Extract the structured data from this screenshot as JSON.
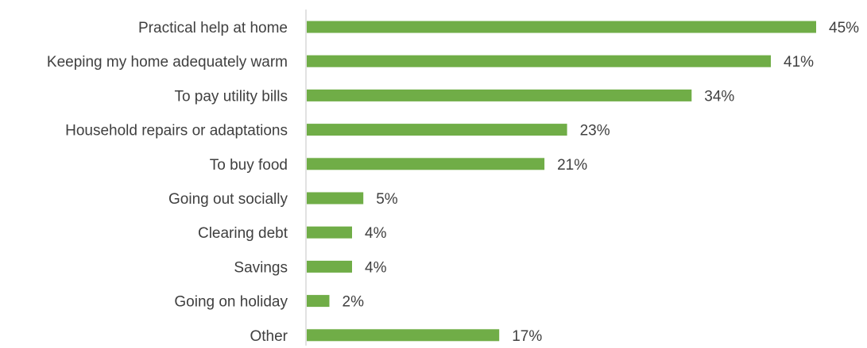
{
  "chart_data": {
    "type": "bar",
    "orientation": "horizontal",
    "title": "",
    "xlabel": "",
    "ylabel": "",
    "categories": [
      "Practical help at home",
      "Keeping my home adequately warm",
      "To pay utility bills",
      "Household repairs or adaptations",
      "To buy food",
      "Going out socially",
      "Clearing debt",
      "Savings",
      "Going on holiday",
      "Other"
    ],
    "values": [
      45,
      41,
      34,
      23,
      21,
      5,
      4,
      4,
      2,
      17
    ],
    "value_labels": [
      "45%",
      "41%",
      "34%",
      "23%",
      "21%",
      "5%",
      "4%",
      "4%",
      "2%",
      "17%"
    ],
    "unit": "%",
    "xlim": [
      0,
      45
    ],
    "grid": false,
    "legend": "none",
    "colors": {
      "bar": "#70ad47",
      "axis": "#d9d9d9",
      "text": "#404040"
    }
  }
}
